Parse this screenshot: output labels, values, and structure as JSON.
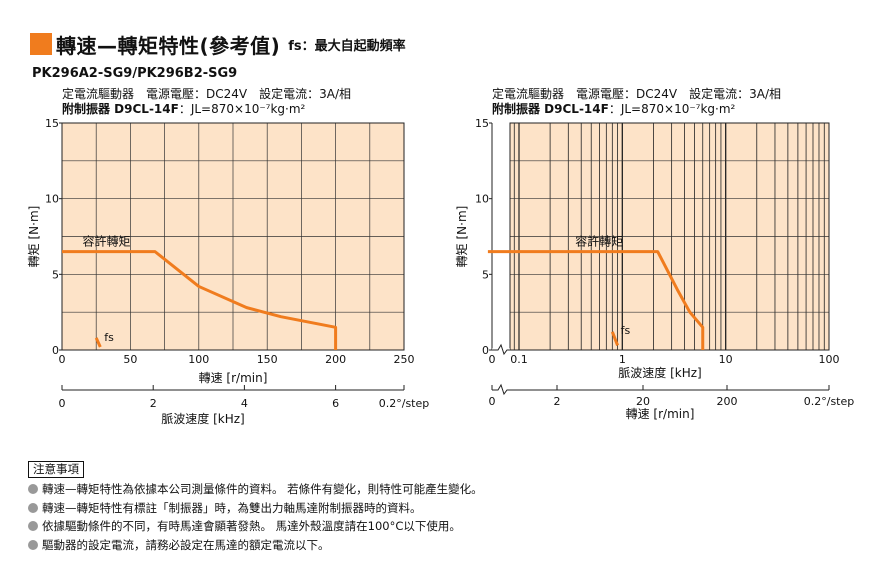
{
  "header": {
    "title": "轉速—轉矩特性(參考值)",
    "fs_note": "fs：最大自起動頻率"
  },
  "model": "PK296A2-SG9/PK296B2-SG9",
  "colors": {
    "accent": "#f07c1e",
    "plot_bg": "#fde3c8",
    "line": "#f07c1e"
  },
  "left_info": {
    "line1": "定電流驅動器　電源電壓：DC24V　設定電流：3A/相",
    "line2_bold": "附制振器 D9CL-14F",
    "line2_rest": "：JL=870×10⁻⁷kg·m²"
  },
  "right_info": {
    "line1": "定電流驅動器　電源電壓：DC24V　設定電流：3A/相",
    "line2_bold": "附制振器 D9CL-14F",
    "line2_rest": "：JL=870×10⁻⁷kg·m²"
  },
  "notes": {
    "title": "注意事項",
    "items": [
      "轉速—轉矩特性為依據本公司測量條件的資料。 若條件有變化，則特性可能產生變化。",
      "轉速—轉矩特性有標註「制振器」時，為雙出力軸馬達附制振器時的資料。",
      "依據驅動條件的不同，有時馬達會顯著發熱。 馬達外殼溫度請在100°C以下使用。",
      "驅動器的設定電流，請務必設定在馬達的額定電流以下。"
    ]
  },
  "chart_data": [
    {
      "type": "line",
      "ylabel": "轉矩 [N·m]",
      "xlabel": "轉速 [r/min]",
      "xlim": [
        0,
        250
      ],
      "ylim": [
        0,
        15
      ],
      "xticks": [
        "0",
        "50",
        "100",
        "150",
        "200",
        "250"
      ],
      "yticks": [
        "0",
        "5",
        "10",
        "15"
      ],
      "x2label": "脈波速度 [kHz]",
      "x2ticks": [
        "0",
        "2",
        "4",
        "6",
        "0.2°/step"
      ],
      "grid": true,
      "series": [
        {
          "name": "容許轉矩",
          "x": [
            0,
            68,
            100,
            135,
            160,
            200,
            200
          ],
          "y": [
            6.5,
            6.5,
            4.2,
            2.8,
            2.2,
            1.5,
            0
          ]
        }
      ],
      "fs": {
        "label": "fs",
        "x": [
          25,
          28
        ],
        "y": [
          0.8,
          0.2
        ]
      }
    },
    {
      "type": "line",
      "scale": "log",
      "ylabel": "轉矩 [N·m]",
      "xlabel": "脈波速度 [kHz]",
      "xlim": [
        0.01,
        100
      ],
      "ylim": [
        0,
        15
      ],
      "xticks": [
        "0",
        "0.1",
        "1",
        "10",
        "100"
      ],
      "yticks": [
        "0",
        "5",
        "10",
        "15"
      ],
      "x2label": "轉速 [r/min]",
      "x2ticks": [
        "0",
        "2",
        "20",
        "200",
        "0.2°/step"
      ],
      "grid": true,
      "series": [
        {
          "name": "容許轉矩",
          "x": [
            0.05,
            2.2,
            3.4,
            4.5,
            6.0,
            6.0
          ],
          "y": [
            6.5,
            6.5,
            4.0,
            2.5,
            1.5,
            0
          ]
        }
      ],
      "fs": {
        "label": "fs",
        "x": [
          0.8,
          0.9
        ],
        "y": [
          1.2,
          0.3
        ]
      }
    }
  ]
}
